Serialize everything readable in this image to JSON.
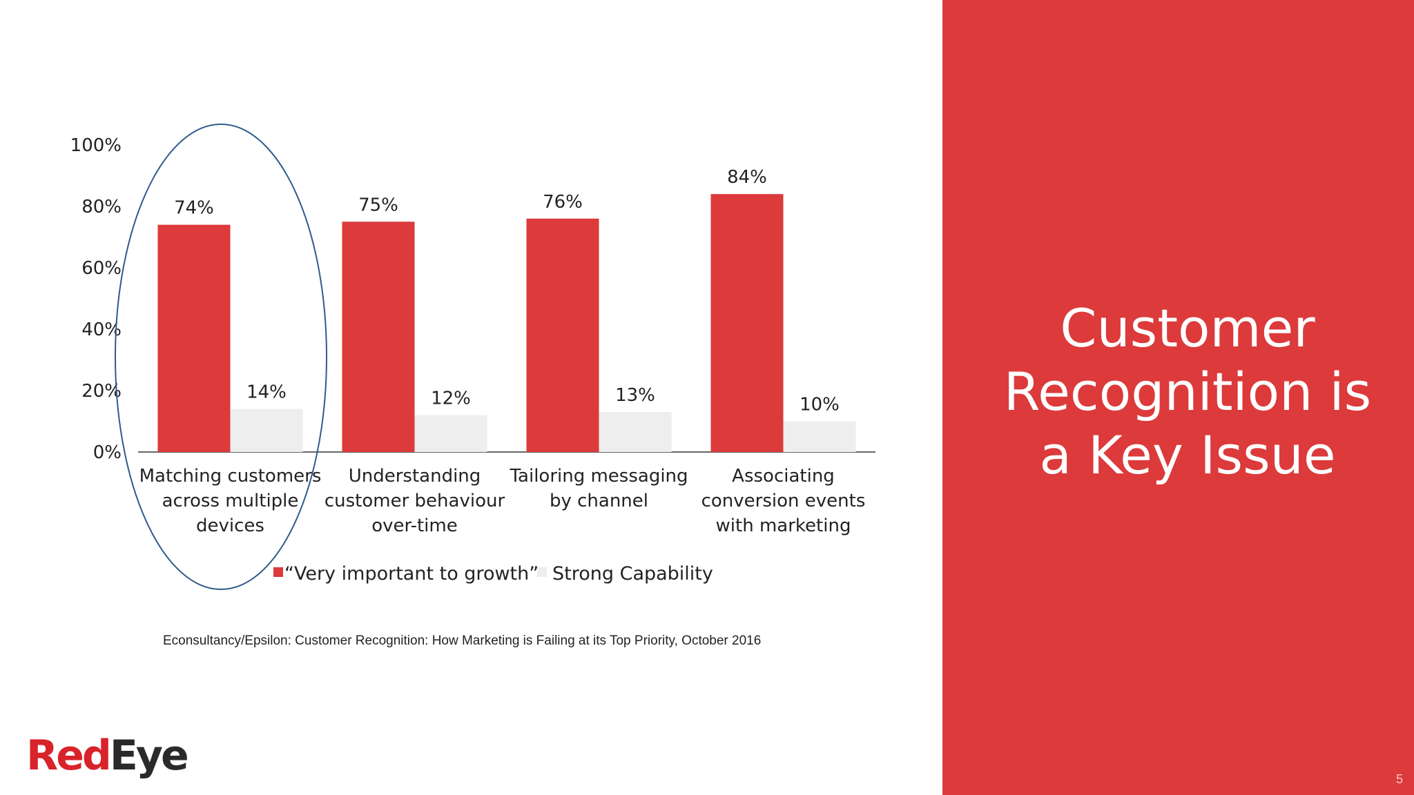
{
  "headline": [
    "Customer",
    "Recognition is",
    "a Key Issue"
  ],
  "slide_number": "5",
  "source": "Econsultancy/Epsilon: Customer Recognition: How Marketing is Failing at its Top Priority, October 2016",
  "logo": {
    "part1": "Red",
    "part2": "Eye"
  },
  "colors": {
    "brand_red": "#dc3a3b",
    "series1": "#dc3a3b",
    "series2": "#eeeeee",
    "highlight_ellipse": "#2f5a8a"
  },
  "chart_data": {
    "type": "bar",
    "categories": [
      [
        "Matching customers",
        "across multiple",
        "devices"
      ],
      [
        "Understanding",
        "customer behaviour",
        "over-time"
      ],
      [
        "Tailoring messaging",
        "by channel"
      ],
      [
        "Associating",
        "conversion events",
        "with marketing"
      ]
    ],
    "series": [
      {
        "name": "“Very important to growth”",
        "values": [
          74,
          75,
          76,
          84
        ],
        "labels": [
          "74%",
          "75%",
          "76%",
          "84%"
        ],
        "color": "#dc3a3b"
      },
      {
        "name": "Strong Capability",
        "values": [
          14,
          12,
          13,
          10
        ],
        "labels": [
          "14%",
          "12%",
          "13%",
          "10%"
        ],
        "color": "#eeeeee"
      }
    ],
    "yticks": [
      "0%",
      "20%",
      "40%",
      "60%",
      "80%",
      "100%"
    ],
    "ylim": [
      0,
      100
    ],
    "grid": false,
    "legend": "bottom",
    "highlight": "first category circled"
  }
}
